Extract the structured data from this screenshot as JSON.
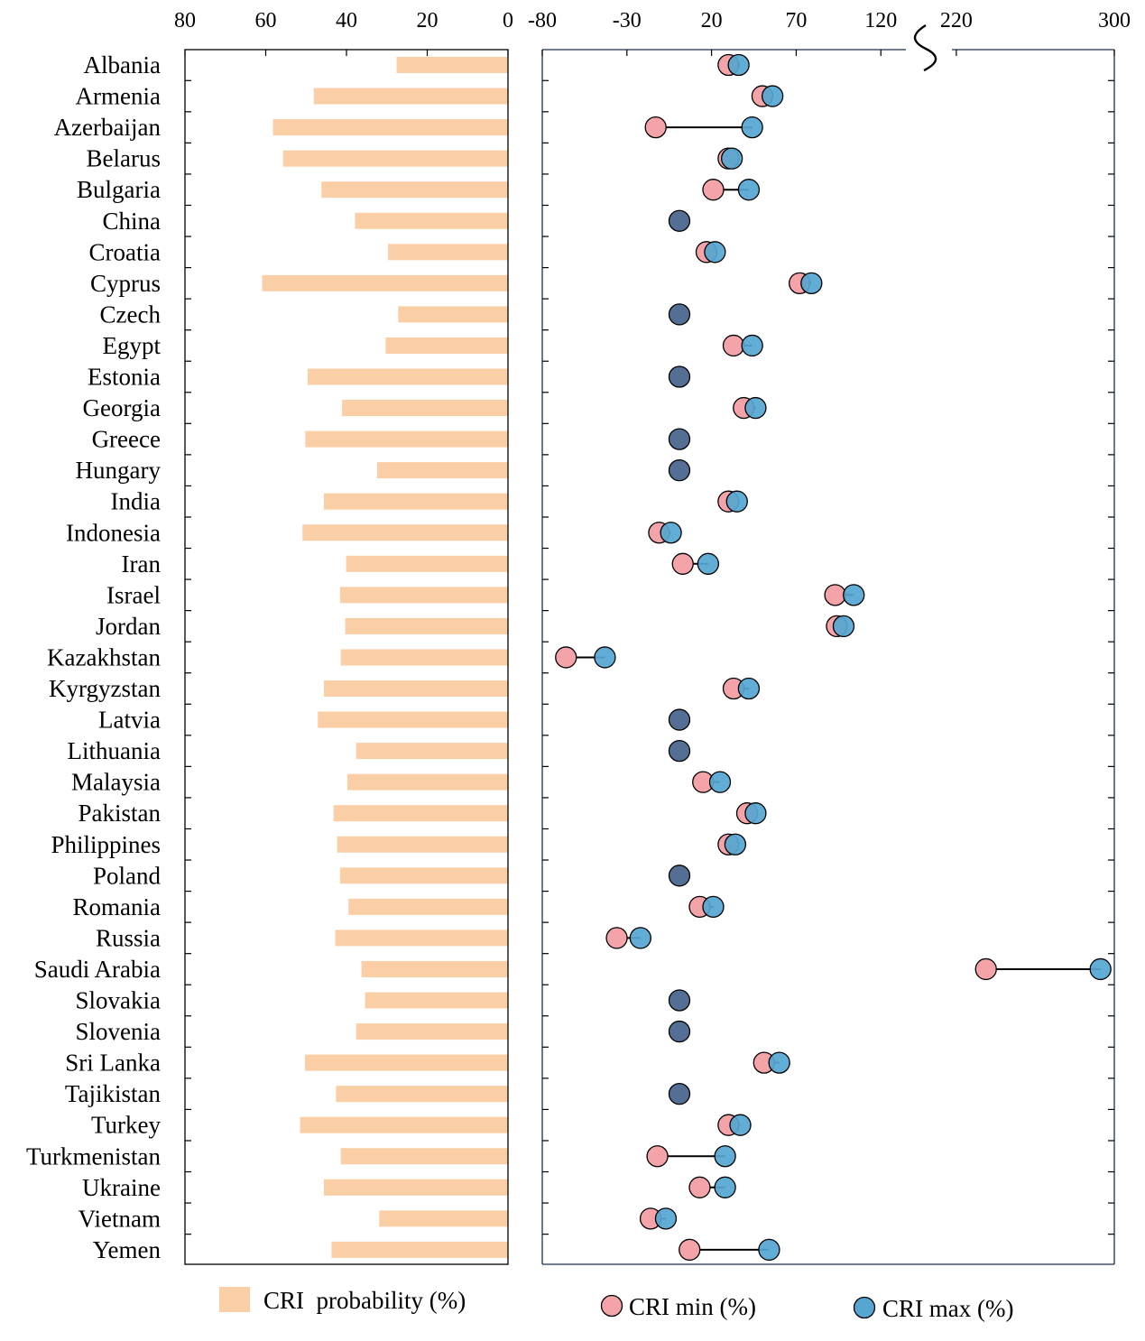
{
  "chart_data": [
    {
      "type": "bar",
      "orientation": "horizontal",
      "x_direction": "reversed",
      "xlim": [
        80,
        0
      ],
      "xticks": [
        80,
        60,
        40,
        20,
        0
      ],
      "series_name": "CRI  probability (%)",
      "color": "#FBCFA6",
      "categories": [
        "Albania",
        "Armenia",
        "Azerbaijan",
        "Belarus",
        "Bulgaria",
        "China",
        "Croatia",
        "Cyprus",
        "Czech",
        "Egypt",
        "Estonia",
        "Georgia",
        "Greece",
        "Hungary",
        "India",
        "Indonesia",
        "Iran",
        "Israel",
        "Jordan",
        "Kazakhstan",
        "Kyrgyzstan",
        "Latvia",
        "Lithuania",
        "Malaysia",
        "Pakistan",
        "Philippines",
        "Poland",
        "Romania",
        "Russia",
        "Saudi Arabia",
        "Slovakia",
        "Slovenia",
        "Sri Lanka",
        "Tajikistan",
        "Turkey",
        "Turkmenistan",
        "Ukraine",
        "Vietnam",
        "Yemen"
      ],
      "values": [
        27.6,
        48.1,
        58.2,
        55.7,
        46.2,
        37.9,
        29.7,
        60.9,
        27.2,
        30.3,
        49.6,
        41.1,
        50.2,
        32.4,
        45.6,
        50.9,
        40.1,
        41.6,
        40.3,
        41.4,
        45.6,
        47.1,
        37.6,
        39.8,
        43.2,
        42.3,
        41.6,
        39.5,
        42.8,
        36.3,
        35.4,
        37.6,
        50.3,
        42.6,
        51.5,
        41.4,
        45.6,
        31.9,
        43.7
      ]
    },
    {
      "type": "dumbbell",
      "orientation": "horizontal",
      "xlim": [
        -80,
        300
      ],
      "axis_break": {
        "from": 130,
        "to": 210
      },
      "xticks": [
        -80,
        -30,
        20,
        70,
        120,
        220,
        300
      ],
      "legend": [
        {
          "name": "CRI min (%)",
          "color": "#F4A3A8"
        },
        {
          "name": "CRI max (%)",
          "color": "#55A6D1"
        }
      ],
      "overlap_color": "#546F93",
      "categories": [
        "Albania",
        "Armenia",
        "Azerbaijan",
        "Belarus",
        "Bulgaria",
        "China",
        "Croatia",
        "Cyprus",
        "Czech",
        "Egypt",
        "Estonia",
        "Georgia",
        "Greece",
        "Hungary",
        "India",
        "Indonesia",
        "Iran",
        "Israel",
        "Jordan",
        "Kazakhstan",
        "Kyrgyzstan",
        "Latvia",
        "Lithuania",
        "Malaysia",
        "Pakistan",
        "Philippines",
        "Poland",
        "Romania",
        "Russia",
        "Saudi Arabia",
        "Slovakia",
        "Slovenia",
        "Sri Lanka",
        "Tajikistan",
        "Turkey",
        "Turkmenistan",
        "Ukraine",
        "Vietnam",
        "Yemen"
      ],
      "min": [
        30,
        50,
        -13,
        30,
        21,
        1,
        17,
        72,
        1,
        33,
        1,
        39,
        1,
        1,
        30,
        -11,
        3,
        93,
        94,
        -66,
        33,
        1,
        1,
        15,
        41,
        30,
        1,
        13,
        -36,
        235,
        1,
        1,
        51,
        1,
        30,
        -12,
        13,
        -16,
        7
      ],
      "max": [
        36,
        56,
        44,
        32,
        42,
        1,
        22,
        79,
        1,
        44,
        1,
        46,
        1,
        1,
        35,
        -4,
        18,
        104,
        98,
        -43,
        42,
        1,
        1,
        25,
        46,
        34,
        1,
        21,
        -22,
        293,
        1,
        1,
        60,
        1,
        37,
        28,
        28,
        -7,
        54
      ]
    }
  ]
}
